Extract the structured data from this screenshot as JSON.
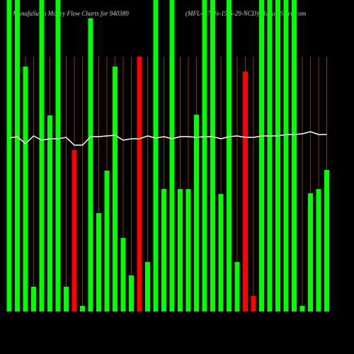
{
  "chart_data": {
    "type": "bar",
    "title": "MunafaSutra  Money Flow  Charts for 940389",
    "subtitle": "(MFL-9.75%-19-5-29-NCD) MunafaSutra.com",
    "ylim": [
      0,
      440
    ],
    "values": [
      440,
      440,
      346,
      35,
      440,
      277,
      440,
      35,
      228,
      8,
      414,
      139,
      199,
      346,
      104,
      51,
      360,
      70,
      440,
      173,
      440,
      173,
      173,
      278,
      440,
      440,
      166,
      440,
      70,
      339,
      22,
      440,
      440,
      440,
      440,
      440,
      8,
      167,
      173,
      200
    ],
    "colors": [
      "#00ff00",
      "#00ff00",
      "#00ff00",
      "#00ff00",
      "#00ff00",
      "#00ff00",
      "#00ff00",
      "#00ff00",
      "#ff0000",
      "#00ff00",
      "#00ff00",
      "#00ff00",
      "#00ff00",
      "#00ff00",
      "#00ff00",
      "#00ff00",
      "#ff0000",
      "#00ff00",
      "#00ff00",
      "#00ff00",
      "#00ff00",
      "#00ff00",
      "#00ff00",
      "#00ff00",
      "#00ff00",
      "#00ff00",
      "#00ff00",
      "#00ff00",
      "#00ff00",
      "#ff0000",
      "#ff0000",
      "#00ff00",
      "#00ff00",
      "#00ff00",
      "#00ff00",
      "#00ff00",
      "#00ff00",
      "#00ff00",
      "#00ff00",
      "#00ff00"
    ],
    "line": {
      "color": "#ffffff",
      "values": [
        245,
        247,
        237,
        248,
        242,
        244,
        244,
        246,
        235,
        235,
        247,
        247,
        248,
        249,
        242,
        244,
        244,
        248,
        245,
        247,
        244,
        247,
        247,
        246,
        247,
        247,
        244,
        247,
        248,
        246,
        246,
        248,
        248,
        248,
        250,
        250,
        251,
        254,
        250,
        250
      ]
    }
  }
}
